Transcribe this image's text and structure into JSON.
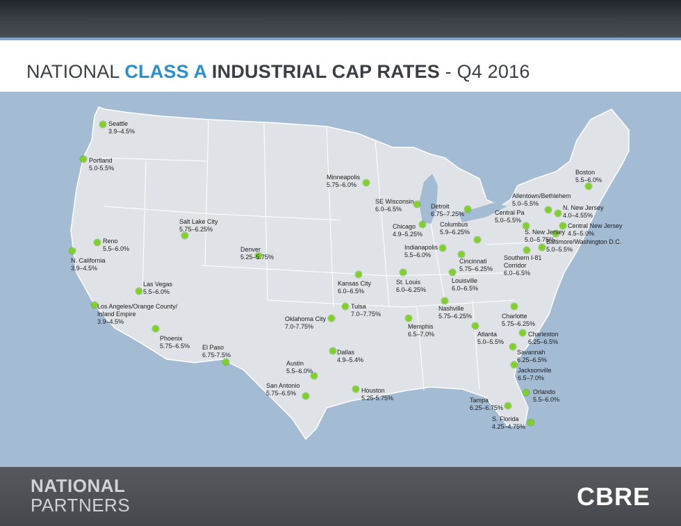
{
  "title": {
    "prefix": "NATIONAL ",
    "highlight": "CLASS A",
    "strong": " INDUSTRIAL CAP RATES",
    "suffix": " - Q4 2016"
  },
  "footer": {
    "brand_line1": "NATIONAL",
    "brand_line2": "PARTNERS",
    "logo_text": "CBRE"
  },
  "colors": {
    "map_background": "#a3bcd3",
    "land": "#dfe3e7",
    "marker": "#7ed321",
    "title_accent": "#2a8fd0"
  },
  "markets": [
    {
      "name": "Seattle",
      "rate": "3.9–4.5%"
    },
    {
      "name": "Portland",
      "rate": "5.0-5.5%"
    },
    {
      "name": "Reno",
      "rate": "5.5–6.0%"
    },
    {
      "name": "N. California",
      "rate": "3.9–4.5%"
    },
    {
      "name": "Las Vegas",
      "rate": "5.5–6.0%"
    },
    {
      "name": "Los Angeles/Orange County/ Inland Empire",
      "rate": "3.9–4.5%"
    },
    {
      "name": "Phoenix",
      "rate": "5.75–6.5%"
    },
    {
      "name": "Salt Lake City",
      "rate": "5.75–6.25%"
    },
    {
      "name": "Denver",
      "rate": "5.25–5.75%"
    },
    {
      "name": "El Paso",
      "rate": "6.75-7.5%"
    },
    {
      "name": "Minneapolis",
      "rate": "5.75–6.0%"
    },
    {
      "name": "Kansas City",
      "rate": "6.0–6.5%"
    },
    {
      "name": "Tulsa",
      "rate": "7.0–7.75%"
    },
    {
      "name": "Oklahoma City",
      "rate": "7.0-7.75%"
    },
    {
      "name": "Dallas",
      "rate": "4.9–5.4%"
    },
    {
      "name": "Austin",
      "rate": "5.5–6.0%"
    },
    {
      "name": "San Antonio",
      "rate": "5.75–6.5%"
    },
    {
      "name": "Houston",
      "rate": "5.25-5.75%"
    },
    {
      "name": "SE Wisconsin",
      "rate": "6.0–6.5%"
    },
    {
      "name": "Chicago",
      "rate": "4.9–5.25%"
    },
    {
      "name": "Detroit",
      "rate": "6.75–7.25%"
    },
    {
      "name": "Columbus",
      "rate": "5.9–6.25%"
    },
    {
      "name": "Indianapolis",
      "rate": "5.5–6.0%"
    },
    {
      "name": "Cincinnati",
      "rate": "5.75–6.25%"
    },
    {
      "name": "St. Louis",
      "rate": "6.0–6.25%"
    },
    {
      "name": "Louisville",
      "rate": "6.0–6.5%"
    },
    {
      "name": "Nashville",
      "rate": "5.75–6.25%"
    },
    {
      "name": "Memphis",
      "rate": "6.5–7.0%"
    },
    {
      "name": "Atlanta",
      "rate": "5.0–5.5%"
    },
    {
      "name": "Charlotte",
      "rate": "5.75–6.25%"
    },
    {
      "name": "Charleston",
      "rate": "6.25–6.5%"
    },
    {
      "name": "Savannah",
      "rate": "6.25–6.5%"
    },
    {
      "name": "Jacksonville",
      "rate": "6.5–7.0%"
    },
    {
      "name": "Orlando",
      "rate": "5.5–6.0%"
    },
    {
      "name": "Tampa",
      "rate": "6.25–6.75%"
    },
    {
      "name": "S. Florida",
      "rate": "4.25–4.75%"
    },
    {
      "name": "Boston",
      "rate": "5.5–6.0%"
    },
    {
      "name": "Allentown/Bethlehem",
      "rate": "5.0–5.5%"
    },
    {
      "name": "N. New Jersey",
      "rate": "4.0–4.55%"
    },
    {
      "name": "Central Pa",
      "rate": "5.0–5.5%"
    },
    {
      "name": "Central New Jersey",
      "rate": "4.5–5.0%"
    },
    {
      "name": "S. New Jersey",
      "rate": "5.0–5.75%"
    },
    {
      "name": "Baltimore/Washington D.C.",
      "rate": "5.0–5.5%"
    },
    {
      "name": "Southern I-81 Corridor",
      "rate": "6.0–6.5%"
    }
  ]
}
